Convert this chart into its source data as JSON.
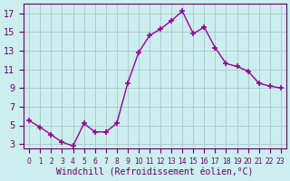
{
  "x": [
    0,
    1,
    2,
    3,
    4,
    5,
    6,
    7,
    8,
    9,
    10,
    11,
    12,
    13,
    14,
    15,
    16,
    17,
    18,
    19,
    20,
    21,
    22,
    23
  ],
  "y": [
    5.5,
    4.8,
    4.0,
    3.2,
    2.8,
    5.2,
    4.3,
    4.3,
    5.2,
    9.5,
    12.8,
    14.6,
    15.3,
    16.2,
    17.2,
    14.8,
    15.5,
    13.3,
    11.6,
    11.3,
    10.8,
    9.5,
    9.2,
    9.0
  ],
  "line_color": "#990099",
  "marker": "+",
  "marker_size": 5,
  "marker_linewidth": 1.2,
  "bg_color": "#cceeee",
  "grid_color": "#aacccc",
  "xlabel": "Windchill (Refroidissement éolien,°C)",
  "xlabel_color": "#660066",
  "tick_color": "#660066",
  "ylabel_ticks": [
    3,
    5,
    7,
    9,
    11,
    13,
    15,
    17
  ],
  "xlim": [
    -0.5,
    23.5
  ],
  "ylim": [
    2.5,
    18.0
  ],
  "xtick_labels": [
    "0",
    "1",
    "2",
    "3",
    "4",
    "5",
    "6",
    "7",
    "8",
    "9",
    "10",
    "11",
    "12",
    "13",
    "14",
    "15",
    "16",
    "17",
    "18",
    "19",
    "20",
    "21",
    "22",
    "23"
  ],
  "figsize": [
    3.2,
    2.0
  ],
  "dpi": 100
}
